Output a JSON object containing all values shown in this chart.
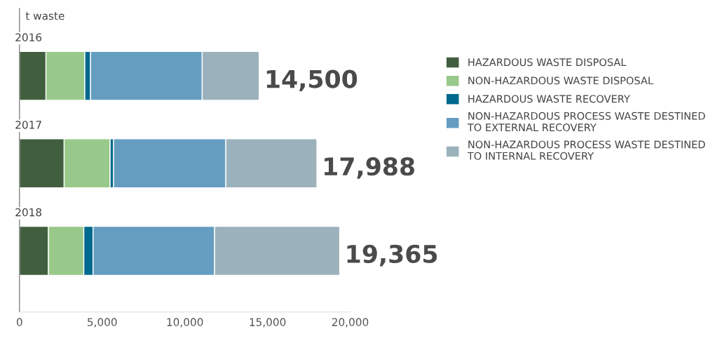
{
  "chart_data": {
    "type": "bar",
    "orientation": "horizontal",
    "stacked": true,
    "xlabel": "t waste",
    "categories": [
      "2016",
      "2017",
      "2018"
    ],
    "series": [
      {
        "name": "HAZARDOUS WASTE DISPOSAL",
        "color": "#415f3e",
        "values": [
          1600,
          2700,
          1750
        ]
      },
      {
        "name": "NON-HAZARDOUS WASTE DISPOSAL",
        "color": "#99c98a",
        "values": [
          2350,
          2780,
          2140
        ]
      },
      {
        "name": "HAZARDOUS WASTE RECOVERY",
        "color": "#006a8e",
        "values": [
          350,
          210,
          560
        ]
      },
      {
        "name": "NON-HAZARDOUS PROCESS WASTE DESTINED\nTO EXTERNAL RECOVERY",
        "color": "#659dc1",
        "values": [
          6750,
          6790,
          7350
        ]
      },
      {
        "name": "NON-HAZARDOUS PROCESS WASTE DESTINED\nTO INTERNAL RECOVERY",
        "color": "#9bb2bc",
        "values": [
          3450,
          5508,
          7565
        ]
      }
    ],
    "totals": [
      "14,500",
      "17,988",
      "19,365"
    ],
    "xlim": [
      0,
      20000
    ],
    "xticks": [
      0,
      {
        "value": 5000,
        "label": "5,000"
      },
      {
        "value": 10000,
        "label": "10,000"
      },
      {
        "value": 15000,
        "label": "15,000"
      },
      {
        "value": 20000,
        "label": "20,000"
      }
    ],
    "grid": false,
    "legend": "right"
  }
}
